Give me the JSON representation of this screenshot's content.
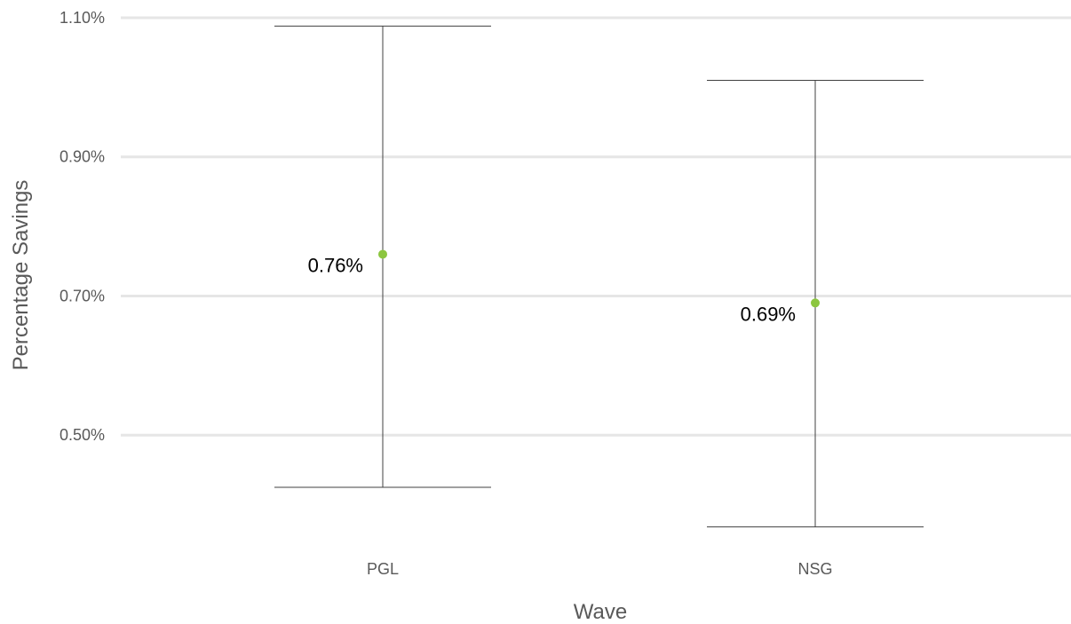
{
  "chart_data": {
    "type": "error-bar",
    "xlabel": "Wave",
    "ylabel": "Percentage Savings",
    "categories": [
      "PGL",
      "NSG"
    ],
    "points": [
      {
        "category": "PGL",
        "value": 0.76,
        "low": 0.425,
        "high": 1.088,
        "label": "0.76%"
      },
      {
        "category": "NSG",
        "value": 0.69,
        "low": 0.368,
        "high": 1.01,
        "label": "0.69%"
      }
    ],
    "ylim": [
      0.365,
      1.1
    ],
    "yticks": [
      0.5,
      0.7,
      0.9,
      1.1
    ],
    "ytick_labels": [
      "0.50%",
      "0.70%",
      "0.90%",
      "1.10%"
    ],
    "grid": true,
    "legend": "none",
    "colors": {
      "point": "#8cc63f",
      "whisker": "#404040",
      "grid": "#e6e6e6",
      "text": "#595959"
    }
  }
}
